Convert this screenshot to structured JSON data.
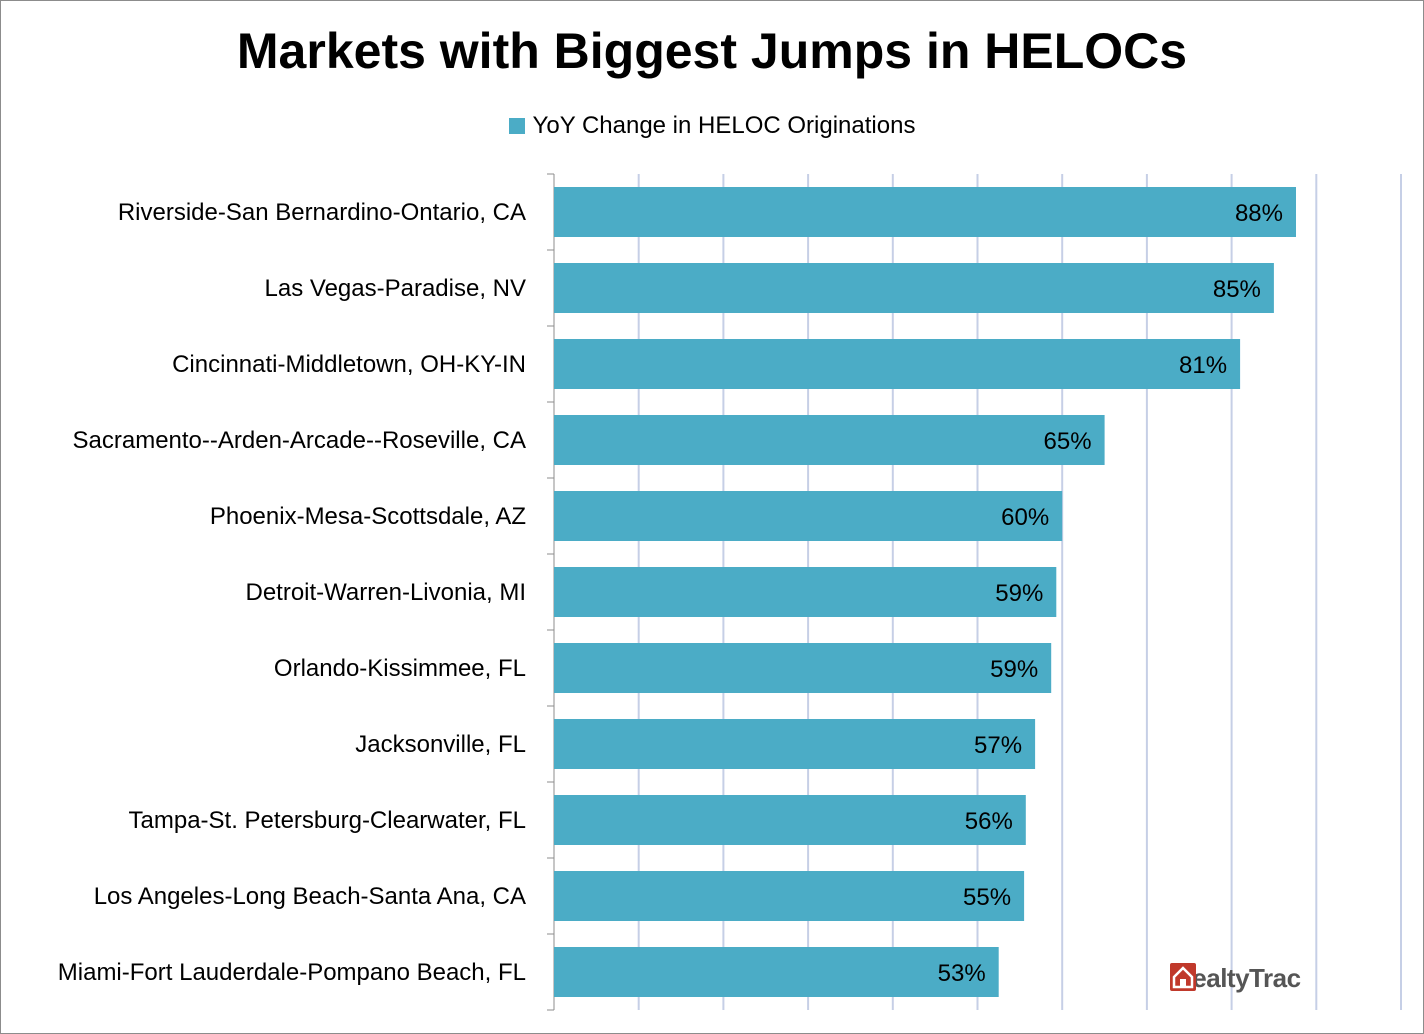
{
  "chart_data": {
    "type": "bar",
    "orientation": "horizontal",
    "title": "Markets with Biggest Jumps in HELOCs",
    "legend": {
      "entries": [
        "YoY Change in HELOC Originations"
      ],
      "position": "top"
    },
    "categories": [
      "Riverside-San Bernardino-Ontario, CA",
      "Las Vegas-Paradise, NV",
      "Cincinnati-Middletown, OH-KY-IN",
      "Sacramento--Arden-Arcade--Roseville, CA",
      "Phoenix-Mesa-Scottsdale, AZ",
      "Detroit-Warren-Livonia, MI",
      "Orlando-Kissimmee, FL",
      "Jacksonville, FL",
      "Tampa-St. Petersburg-Clearwater, FL",
      "Los Angeles-Long Beach-Santa Ana, CA",
      "Miami-Fort Lauderdale-Pompano Beach, FL"
    ],
    "series": [
      {
        "name": "YoY Change in HELOC Originations",
        "values": [
          0.876,
          0.85,
          0.81,
          0.65,
          0.6,
          0.593,
          0.587,
          0.568,
          0.557,
          0.555,
          0.525
        ],
        "labels": [
          "88%",
          "85%",
          "81%",
          "65%",
          "60%",
          "59%",
          "59%",
          "57%",
          "56%",
          "55%",
          "53%"
        ]
      }
    ],
    "xlim": [
      0,
      1.0
    ],
    "grid": true,
    "colors": {
      "bar": "#4bacc6",
      "grid": "#c6cfe6",
      "axis": "#8c8c8c"
    }
  },
  "logo": {
    "text": "RealtyTrac",
    "icon": "house-icon",
    "color": "#c0392b"
  }
}
